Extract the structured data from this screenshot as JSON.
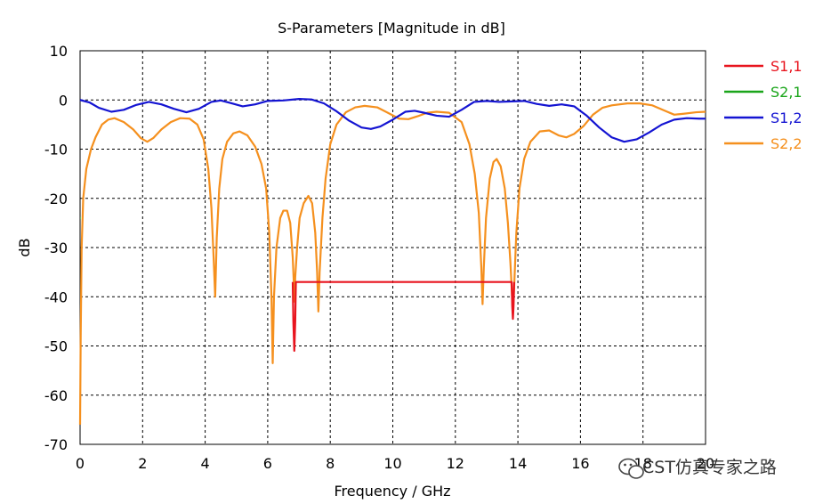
{
  "chart_data": {
    "type": "line",
    "title": "S-Parameters [Magnitude in dB]",
    "xlabel": "Frequency / GHz",
    "ylabel": "dB",
    "xlim": [
      0,
      20
    ],
    "ylim": [
      -70,
      10
    ],
    "xticks": [
      "0",
      "2",
      "4",
      "6",
      "8",
      "10",
      "12",
      "14",
      "16",
      "18",
      "20"
    ],
    "yticks": [
      "10",
      "0",
      "-10",
      "-20",
      "-30",
      "-40",
      "-50",
      "-60",
      "-70"
    ],
    "grid": true,
    "legend_position": "right",
    "series": [
      {
        "name": "S1,1",
        "color": "#e8141e",
        "points": [
          [
            6.8,
            -37
          ],
          [
            6.82,
            -45
          ],
          [
            6.85,
            -51
          ],
          [
            6.88,
            -45
          ],
          [
            6.9,
            -37
          ],
          [
            13.8,
            -37
          ],
          [
            13.82,
            -42
          ],
          [
            13.84,
            -44.5
          ],
          [
            13.86,
            -42
          ],
          [
            13.88,
            -37
          ]
        ]
      },
      {
        "name": "S2,1",
        "color": "#1aa51a",
        "points": [
          [
            0,
            -24
          ],
          [
            0.02,
            -24
          ]
        ]
      },
      {
        "name": "S1,2",
        "color": "#1414d2",
        "points": [
          [
            0,
            0
          ],
          [
            0.3,
            -0.5
          ],
          [
            0.6,
            -1.6
          ],
          [
            1.0,
            -2.4
          ],
          [
            1.4,
            -2.0
          ],
          [
            1.8,
            -1.0
          ],
          [
            2.2,
            -0.4
          ],
          [
            2.6,
            -0.9
          ],
          [
            3.0,
            -1.8
          ],
          [
            3.4,
            -2.5
          ],
          [
            3.8,
            -1.8
          ],
          [
            4.2,
            -0.4
          ],
          [
            4.5,
            -0.1
          ],
          [
            4.8,
            -0.6
          ],
          [
            5.2,
            -1.3
          ],
          [
            5.6,
            -0.9
          ],
          [
            6.0,
            -0.2
          ],
          [
            6.5,
            -0.1
          ],
          [
            7.0,
            0.2
          ],
          [
            7.4,
            0.1
          ],
          [
            7.8,
            -0.7
          ],
          [
            8.2,
            -2.3
          ],
          [
            8.6,
            -4.2
          ],
          [
            9.0,
            -5.6
          ],
          [
            9.3,
            -5.9
          ],
          [
            9.6,
            -5.4
          ],
          [
            10.0,
            -4.0
          ],
          [
            10.4,
            -2.4
          ],
          [
            10.7,
            -2.2
          ],
          [
            11.0,
            -2.6
          ],
          [
            11.4,
            -3.2
          ],
          [
            11.8,
            -3.4
          ],
          [
            12.2,
            -2.0
          ],
          [
            12.6,
            -0.4
          ],
          [
            13.0,
            -0.2
          ],
          [
            13.4,
            -0.4
          ],
          [
            13.8,
            -0.3
          ],
          [
            14.2,
            -0.2
          ],
          [
            14.6,
            -0.8
          ],
          [
            15.0,
            -1.2
          ],
          [
            15.4,
            -0.9
          ],
          [
            15.8,
            -1.3
          ],
          [
            16.2,
            -3.2
          ],
          [
            16.6,
            -5.6
          ],
          [
            17.0,
            -7.6
          ],
          [
            17.4,
            -8.5
          ],
          [
            17.8,
            -8.0
          ],
          [
            18.2,
            -6.6
          ],
          [
            18.6,
            -5.0
          ],
          [
            19.0,
            -4.0
          ],
          [
            19.4,
            -3.7
          ],
          [
            19.8,
            -3.8
          ],
          [
            20.0,
            -3.8
          ]
        ]
      },
      {
        "name": "S2,2",
        "color": "#f5901e",
        "points": [
          [
            0,
            -66
          ],
          [
            0.02,
            -48
          ],
          [
            0.05,
            -30
          ],
          [
            0.1,
            -20
          ],
          [
            0.2,
            -14
          ],
          [
            0.35,
            -10
          ],
          [
            0.5,
            -7.5
          ],
          [
            0.7,
            -5.0
          ],
          [
            0.9,
            -4.0
          ],
          [
            1.1,
            -3.7
          ],
          [
            1.4,
            -4.5
          ],
          [
            1.7,
            -6.0
          ],
          [
            1.95,
            -7.8
          ],
          [
            2.15,
            -8.5
          ],
          [
            2.35,
            -7.7
          ],
          [
            2.6,
            -6.0
          ],
          [
            2.9,
            -4.5
          ],
          [
            3.2,
            -3.7
          ],
          [
            3.5,
            -3.8
          ],
          [
            3.75,
            -5.0
          ],
          [
            3.95,
            -8.0
          ],
          [
            4.1,
            -14
          ],
          [
            4.2,
            -22
          ],
          [
            4.27,
            -32
          ],
          [
            4.32,
            -40
          ],
          [
            4.37,
            -28
          ],
          [
            4.45,
            -18
          ],
          [
            4.55,
            -12
          ],
          [
            4.7,
            -8.5
          ],
          [
            4.9,
            -6.8
          ],
          [
            5.1,
            -6.4
          ],
          [
            5.35,
            -7.2
          ],
          [
            5.6,
            -9.5
          ],
          [
            5.8,
            -13
          ],
          [
            5.95,
            -18
          ],
          [
            6.05,
            -27
          ],
          [
            6.12,
            -40
          ],
          [
            6.16,
            -53.5
          ],
          [
            6.2,
            -40
          ],
          [
            6.28,
            -30
          ],
          [
            6.4,
            -24
          ],
          [
            6.5,
            -22.5
          ],
          [
            6.62,
            -22.5
          ],
          [
            6.72,
            -25
          ],
          [
            6.8,
            -32
          ],
          [
            6.84,
            -38
          ],
          [
            6.86,
            -41
          ],
          [
            6.88,
            -36
          ],
          [
            6.94,
            -30
          ],
          [
            7.02,
            -24
          ],
          [
            7.15,
            -21
          ],
          [
            7.3,
            -19.5
          ],
          [
            7.42,
            -21
          ],
          [
            7.52,
            -27
          ],
          [
            7.58,
            -35
          ],
          [
            7.62,
            -43
          ],
          [
            7.66,
            -35
          ],
          [
            7.75,
            -24
          ],
          [
            7.85,
            -16
          ],
          [
            8.0,
            -9
          ],
          [
            8.2,
            -5
          ],
          [
            8.5,
            -2.5
          ],
          [
            8.8,
            -1.5
          ],
          [
            9.1,
            -1.2
          ],
          [
            9.5,
            -1.5
          ],
          [
            9.9,
            -2.8
          ],
          [
            10.2,
            -3.8
          ],
          [
            10.5,
            -3.9
          ],
          [
            10.8,
            -3.3
          ],
          [
            11.1,
            -2.6
          ],
          [
            11.4,
            -2.4
          ],
          [
            11.8,
            -2.6
          ],
          [
            12.2,
            -4.5
          ],
          [
            12.45,
            -9
          ],
          [
            12.62,
            -15
          ],
          [
            12.75,
            -23
          ],
          [
            12.83,
            -34
          ],
          [
            12.87,
            -41.5
          ],
          [
            12.91,
            -34
          ],
          [
            12.98,
            -24
          ],
          [
            13.1,
            -16
          ],
          [
            13.22,
            -12.6
          ],
          [
            13.32,
            -12
          ],
          [
            13.45,
            -13.5
          ],
          [
            13.58,
            -18
          ],
          [
            13.68,
            -25
          ],
          [
            13.76,
            -33
          ],
          [
            13.8,
            -38
          ],
          [
            13.84,
            -43.5
          ],
          [
            13.88,
            -38
          ],
          [
            13.95,
            -27
          ],
          [
            14.05,
            -18
          ],
          [
            14.2,
            -12
          ],
          [
            14.4,
            -8.5
          ],
          [
            14.7,
            -6.4
          ],
          [
            15.0,
            -6.2
          ],
          [
            15.3,
            -7.2
          ],
          [
            15.55,
            -7.6
          ],
          [
            15.8,
            -6.9
          ],
          [
            16.1,
            -5.3
          ],
          [
            16.4,
            -3.0
          ],
          [
            16.7,
            -1.6
          ],
          [
            17.0,
            -1.1
          ],
          [
            17.5,
            -0.7
          ],
          [
            17.9,
            -0.7
          ],
          [
            18.3,
            -1.1
          ],
          [
            18.7,
            -2.2
          ],
          [
            19.0,
            -3.0
          ],
          [
            19.3,
            -2.8
          ],
          [
            19.7,
            -2.5
          ],
          [
            20.0,
            -2.4
          ]
        ]
      }
    ]
  },
  "watermark": {
    "text": "CST仿真专家之路",
    "icon": "wechat-icon"
  }
}
